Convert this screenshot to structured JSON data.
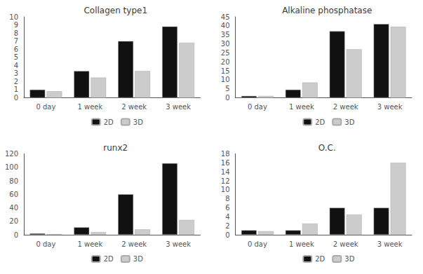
{
  "chart_data": [
    {
      "type": "bar",
      "title": "Collagen type1",
      "categories": [
        "0 day",
        "1 week",
        "2 week",
        "3 week"
      ],
      "series": [
        {
          "name": "2D",
          "color": "#111111",
          "values": [
            1.0,
            3.3,
            7.0,
            8.8
          ]
        },
        {
          "name": "3D",
          "color": "#cccccc",
          "values": [
            0.8,
            2.5,
            3.3,
            6.8
          ]
        }
      ],
      "ylim": [
        0,
        10
      ],
      "yticks": [
        0,
        1,
        2,
        3,
        4,
        5,
        6,
        7,
        8,
        9,
        10
      ],
      "grid": false,
      "legend": "bottom"
    },
    {
      "type": "bar",
      "title": "Alkaline phosphatase",
      "categories": [
        "0 day",
        "1 week",
        "2 week",
        "3 week"
      ],
      "series": [
        {
          "name": "2D",
          "color": "#111111",
          "values": [
            1.0,
            4.5,
            37.0,
            41.0
          ]
        },
        {
          "name": "3D",
          "color": "#cccccc",
          "values": [
            1.0,
            8.5,
            27.0,
            39.5
          ]
        }
      ],
      "ylim": [
        0,
        45
      ],
      "yticks": [
        0,
        5,
        10,
        15,
        20,
        25,
        30,
        35,
        40,
        45
      ],
      "grid": false,
      "legend": "bottom"
    },
    {
      "type": "bar",
      "title": "runx2",
      "categories": [
        "0 day",
        "1 week",
        "2 week",
        "3 week"
      ],
      "series": [
        {
          "name": "2D",
          "color": "#111111",
          "values": [
            2.0,
            11.0,
            60.0,
            106.0
          ]
        },
        {
          "name": "3D",
          "color": "#cccccc",
          "values": [
            1.0,
            4.0,
            8.0,
            22.0
          ]
        }
      ],
      "ylim": [
        0,
        120
      ],
      "yticks": [
        0,
        20,
        40,
        60,
        80,
        100,
        120
      ],
      "grid": false,
      "legend": "bottom"
    },
    {
      "type": "bar",
      "title": "O.C.",
      "categories": [
        "0 day",
        "1 week",
        "2 week",
        "3 week"
      ],
      "series": [
        {
          "name": "2D",
          "color": "#111111",
          "values": [
            1.0,
            1.0,
            6.0,
            6.0
          ]
        },
        {
          "name": "3D",
          "color": "#cccccc",
          "values": [
            0.8,
            2.5,
            4.5,
            16.0
          ]
        }
      ],
      "ylim": [
        0,
        18
      ],
      "yticks": [
        0,
        2,
        4,
        6,
        8,
        10,
        12,
        14,
        16,
        18
      ],
      "grid": false,
      "legend": "bottom"
    }
  ]
}
